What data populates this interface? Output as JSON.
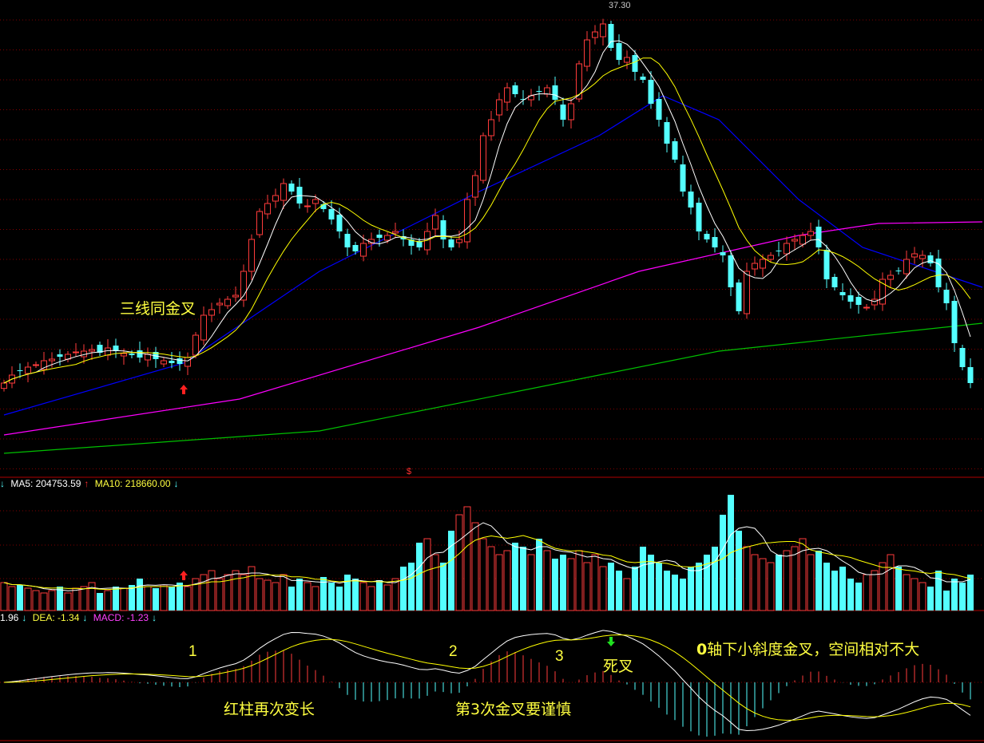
{
  "chart_data": [
    {
      "type": "candlestick",
      "title": "",
      "high_label": "37.30",
      "close": [
        22.99,
        23.29,
        23.44,
        23.59,
        23.68,
        23.83,
        23.89,
        23.98,
        24.07,
        24.16,
        24.19,
        24.25,
        24.13,
        24.31,
        24.19,
        24.1,
        24.04,
        23.95,
        24.07,
        23.89,
        23.83,
        23.74,
        23.71,
        23.95,
        24.79,
        25.54,
        25.75,
        25.99,
        26.14,
        26.29,
        27.19,
        28.39,
        29.44,
        29.74,
        30.04,
        30.49,
        30.19,
        29.74,
        29.65,
        29.89,
        29.53,
        29.14,
        28.69,
        28.09,
        27.94,
        28.24,
        28.39,
        28.45,
        28.54,
        28.69,
        28.39,
        28.15,
        28.09,
        28.69,
        29.29,
        28.39,
        28.09,
        28.39,
        29.89,
        30.79,
        32.29,
        32.89,
        33.64,
        34.09,
        33.85,
        33.64,
        33.79,
        33.94,
        34.09,
        33.64,
        32.89,
        33.49,
        34.99,
        35.89,
        36.19,
        36.49,
        35.59,
        35.14,
        35.23,
        34.69,
        34.39,
        33.49,
        32.89,
        31.99,
        31.39,
        30.19,
        29.59,
        28.69,
        28.39,
        28.09,
        27.79,
        26.59,
        25.69,
        27.19,
        27.49,
        27.64,
        27.79,
        27.94,
        28.24,
        28.39,
        28.54,
        28.69,
        28.09,
        26.89,
        26.59,
        26.29,
        26.05,
        25.93,
        25.84,
        26.14,
        26.89,
        27.04,
        27.19,
        27.64,
        27.85,
        27.79,
        27.49,
        26.59,
        25.99,
        24.49,
        23.59,
        22.99
      ],
      "moving_averages": [
        {
          "color": "#0000ff",
          "points": [
            [
              0,
              21.79
            ],
            [
              22.5,
              23.74
            ],
            [
              39.5,
              27.19
            ],
            [
              59.5,
              30.19
            ],
            [
              74.5,
              32.29
            ],
            [
              82.5,
              33.79
            ],
            [
              89.5,
              32.89
            ],
            [
              99.5,
              29.89
            ],
            [
              107.5,
              28.09
            ],
            [
              122.5,
              26.59
            ]
          ]
        },
        {
          "color": "#ff00ff",
          "points": [
            [
              0,
              21.04
            ],
            [
              29.5,
              22.39
            ],
            [
              59.5,
              25.09
            ],
            [
              79.5,
              27.19
            ],
            [
              99.5,
              28.54
            ],
            [
              109.5,
              28.99
            ],
            [
              122.5,
              29.05
            ]
          ]
        },
        {
          "color": "#00c000",
          "points": [
            [
              0,
              20.35
            ],
            [
              39.5,
              21.19
            ],
            [
              69.5,
              22.99
            ],
            [
              89.5,
              24.19
            ],
            [
              122.5,
              25.24
            ]
          ]
        }
      ],
      "ma_short_colors": {
        "ma5": "#ffffff",
        "ma10": "#ffff00"
      },
      "up_color": "#ff3b3b",
      "down_color": "#54ffff",
      "annotation": "三线同金叉"
    },
    {
      "type": "bar",
      "legend": {
        "ma5": "MA5: 204753.59",
        "ma10": "MA10: 218660.00"
      },
      "volume": [
        175000,
        150000,
        160000,
        140000,
        125000,
        110000,
        125000,
        150000,
        110000,
        140000,
        150000,
        175000,
        110000,
        125000,
        150000,
        140000,
        160000,
        200000,
        150000,
        140000,
        160000,
        150000,
        175000,
        150000,
        200000,
        225000,
        250000,
        200000,
        225000,
        250000,
        225000,
        275000,
        200000,
        190000,
        175000,
        225000,
        150000,
        200000,
        175000,
        150000,
        210000,
        175000,
        150000,
        225000,
        200000,
        175000,
        150000,
        190000,
        160000,
        200000,
        275000,
        300000,
        425000,
        450000,
        350000,
        300000,
        500000,
        600000,
        650000,
        550000,
        450000,
        400000,
        350000,
        375000,
        425000,
        400000,
        350000,
        450000,
        375000,
        325000,
        350000,
        325000,
        375000,
        300000,
        350000,
        275000,
        300000,
        250000,
        200000,
        275000,
        400000,
        350000,
        300000,
        250000,
        225000,
        200000,
        275000,
        300000,
        350000,
        400000,
        600000,
        725000,
        500000,
        400000,
        350000,
        325000,
        300000,
        350000,
        375000,
        400000,
        450000,
        350000,
        375000,
        300000,
        250000,
        275000,
        200000,
        175000,
        225000,
        250000,
        300000,
        350000,
        275000,
        225000,
        200000,
        175000,
        150000,
        250000,
        125000,
        200000,
        175000,
        225000
      ]
    },
    {
      "type": "line",
      "legend": {
        "dif": "1.96",
        "dea": "DEA: -1.34",
        "macd": "MACD: -1.23"
      },
      "series_colors": {
        "dif": "#ffffff",
        "dea": "#ffff00",
        "macd_label": "#ff40ff"
      }
    }
  ],
  "annotations": {
    "three_line_cross": "三线同金叉",
    "cross_1": "1",
    "cross_2": "2",
    "cross_3": "3",
    "death_cross": "死叉",
    "zero_axis_prefix": "0",
    "zero_axis_note": "轴下小斜度金叉，空间相对不大",
    "red_bars": "红柱再次变长",
    "third_cross": "第3次金叉要谨慎"
  },
  "marker": "$"
}
